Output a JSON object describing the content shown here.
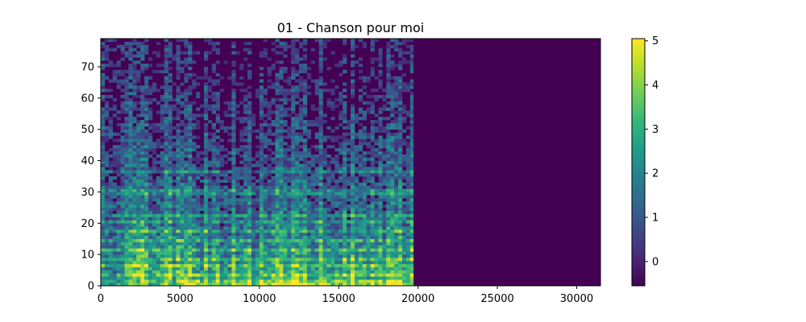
{
  "chart_data": {
    "type": "heatmap",
    "title": "01 - Chanson pour moi",
    "xlabel": "",
    "ylabel": "",
    "xlim": [
      0,
      31500
    ],
    "ylim": [
      0,
      79
    ],
    "x_ticks": [
      0,
      5000,
      10000,
      15000,
      20000,
      25000,
      30000
    ],
    "y_ticks": [
      0,
      10,
      20,
      30,
      40,
      50,
      60,
      70
    ],
    "colormap": "viridis",
    "colorbar": {
      "range": [
        -0.55,
        5.05
      ],
      "ticks": [
        0,
        1,
        2,
        3,
        4,
        5
      ]
    },
    "activity_end_x": 19700,
    "background_value": -0.55,
    "bright_bands_y": [
      3,
      6,
      8,
      11,
      14,
      17,
      20,
      22,
      29,
      30,
      36
    ],
    "intensity_by_frequency": [
      {
        "y": 0,
        "mean_value": 3.2
      },
      {
        "y": 5,
        "mean_value": 2.8
      },
      {
        "y": 10,
        "mean_value": 2.3
      },
      {
        "y": 15,
        "mean_value": 2.0
      },
      {
        "y": 20,
        "mean_value": 1.6
      },
      {
        "y": 30,
        "mean_value": 1.2
      },
      {
        "y": 40,
        "mean_value": 0.8
      },
      {
        "y": 50,
        "mean_value": 0.4
      },
      {
        "y": 60,
        "mean_value": 0.1
      },
      {
        "y": 70,
        "mean_value": -0.2
      }
    ]
  },
  "colors": {
    "viridis_stops": [
      "#440154",
      "#482878",
      "#3e4989",
      "#31688e",
      "#26828e",
      "#1f9e89",
      "#35b779",
      "#6ece58",
      "#b5de2b",
      "#fde725"
    ]
  }
}
